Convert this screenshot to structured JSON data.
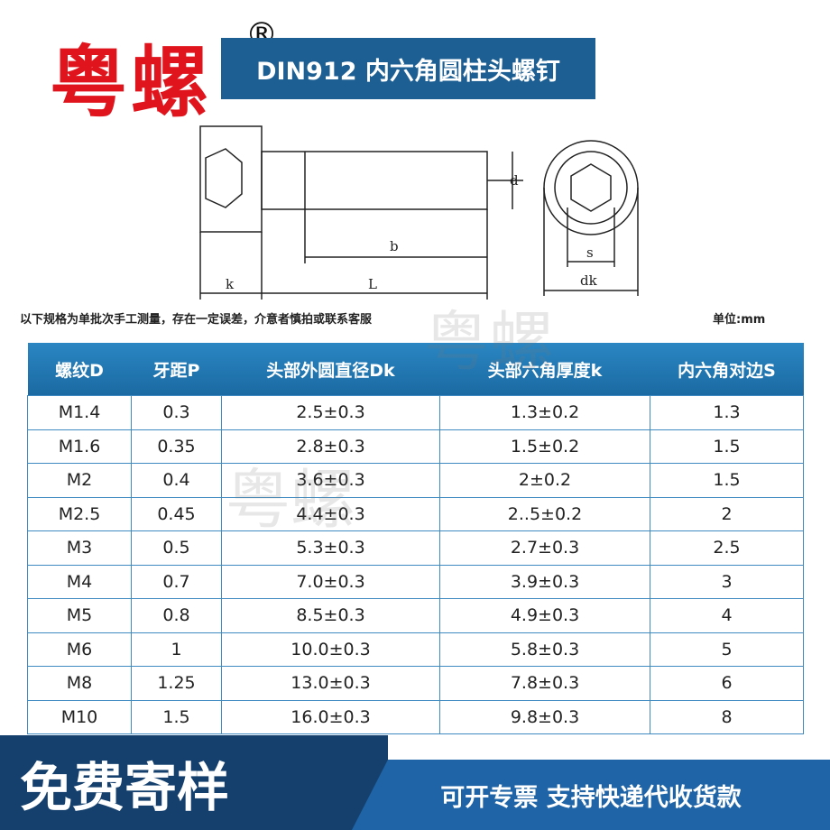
{
  "brand": {
    "name": "粤螺",
    "mark": "®"
  },
  "header": {
    "title": "DIN912 内六角圆柱头螺钉"
  },
  "drawing": {
    "labels": {
      "d": "d",
      "k": "k",
      "b": "b",
      "L": "L",
      "s": "s",
      "dk": "dk"
    }
  },
  "note": {
    "text": "以下规格为单批次手工测量，存在一定误差，介意者慎拍或联系客服",
    "unit": "单位:mm"
  },
  "watermarks": [
    "粤螺",
    "粤螺"
  ],
  "table": {
    "header": [
      "螺纹D",
      "牙距P",
      "头部外圆直径Dk",
      "头部六角厚度k",
      "内六角对边S"
    ],
    "rows": [
      [
        "M1.4",
        "0.3",
        "2.5±0.3",
        "1.3±0.2",
        "1.3"
      ],
      [
        "M1.6",
        "0.35",
        "2.8±0.3",
        "1.5±0.2",
        "1.5"
      ],
      [
        "M2",
        "0.4",
        "3.6±0.3",
        "2±0.2",
        "1.5"
      ],
      [
        "M2.5",
        "0.45",
        "4.4±0.3",
        "2..5±0.2",
        "2"
      ],
      [
        "M3",
        "0.5",
        "5.3±0.3",
        "2.7±0.3",
        "2.5"
      ],
      [
        "M4",
        "0.7",
        "7.0±0.3",
        "3.9±0.3",
        "3"
      ],
      [
        "M5",
        "0.8",
        "8.5±0.3",
        "4.9±0.3",
        "4"
      ],
      [
        "M6",
        "1",
        "10.0±0.3",
        "5.8±0.3",
        "5"
      ],
      [
        "M8",
        "1.25",
        "13.0±0.3",
        "7.8±0.3",
        "6"
      ],
      [
        "M10",
        "1.5",
        "16.0±0.3",
        "9.8±0.3",
        "8"
      ]
    ]
  },
  "banner": {
    "left": "免费寄样",
    "right": "可开专票 支持快递代收货款"
  }
}
